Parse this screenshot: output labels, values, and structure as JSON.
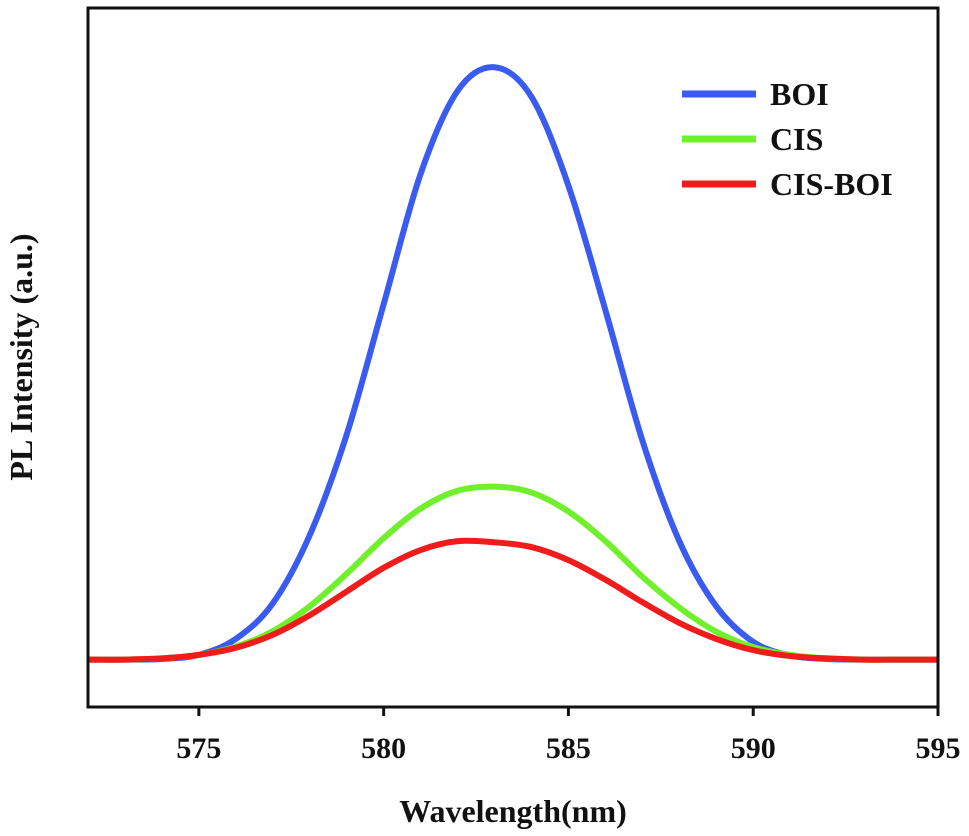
{
  "chart_data": {
    "type": "line",
    "title": "",
    "xlabel": "Wavelength(nm)",
    "ylabel": "PL Intensity (a.u.)",
    "xlim": [
      572,
      595
    ],
    "ylim": [
      -0.08,
      1.1
    ],
    "xticks": [
      {
        "value": 575,
        "label": "575"
      },
      {
        "value": 580,
        "label": "580"
      },
      {
        "value": 585,
        "label": "585"
      },
      {
        "value": 590,
        "label": "590"
      },
      {
        "value": 595,
        "label": "595"
      }
    ],
    "yticks_shown": false,
    "grid": false,
    "legend_position": "top-right",
    "x": [
      572,
      573,
      574,
      575,
      576,
      577,
      578,
      579,
      580,
      581,
      582,
      583,
      584,
      585,
      586,
      587,
      588,
      589,
      590,
      591,
      592,
      593,
      594,
      595
    ],
    "series": [
      {
        "name": "BOI",
        "color": "#3a5bef",
        "values": [
          0.0,
          0.0,
          0.001,
          0.008,
          0.035,
          0.095,
          0.21,
          0.38,
          0.6,
          0.82,
          0.96,
          1.0,
          0.95,
          0.8,
          0.59,
          0.37,
          0.2,
          0.09,
          0.03,
          0.007,
          0.001,
          0.0,
          0.0,
          0.0
        ]
      },
      {
        "name": "CIS",
        "color": "#6ff02a",
        "values": [
          0.0,
          0.0,
          0.002,
          0.008,
          0.022,
          0.048,
          0.09,
          0.145,
          0.205,
          0.255,
          0.285,
          0.292,
          0.282,
          0.25,
          0.2,
          0.14,
          0.088,
          0.047,
          0.021,
          0.008,
          0.002,
          0.0,
          0.0,
          0.0
        ]
      },
      {
        "name": "CIS-BOI",
        "color": "#f01c1c",
        "values": [
          0.0,
          0.0,
          0.002,
          0.008,
          0.02,
          0.042,
          0.075,
          0.115,
          0.155,
          0.185,
          0.2,
          0.198,
          0.19,
          0.168,
          0.135,
          0.097,
          0.062,
          0.035,
          0.016,
          0.006,
          0.002,
          0.0,
          0.0,
          0.0
        ]
      }
    ]
  }
}
